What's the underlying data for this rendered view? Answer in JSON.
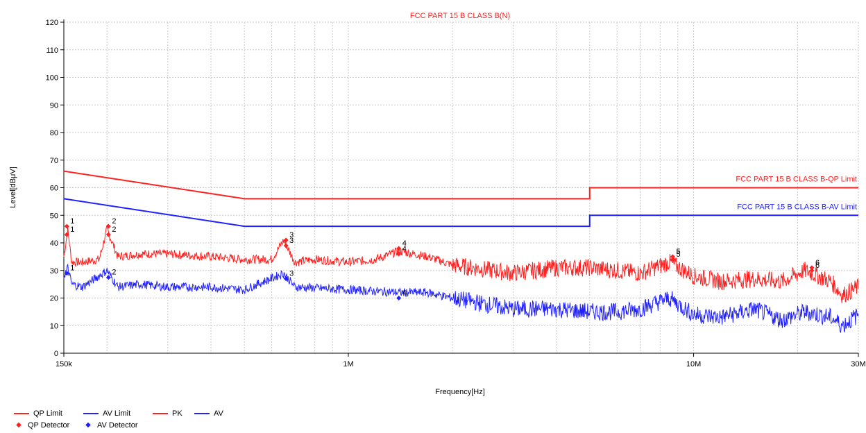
{
  "chart_data": {
    "type": "line",
    "title": "FCC PART 15 B CLASS B(N)",
    "xlabel": "Frequency[Hz]",
    "ylabel": "Level[dBμV]",
    "x_scale": "log",
    "xlim": [
      150000,
      30000000
    ],
    "ylim": [
      0,
      120
    ],
    "x_ticks": [
      150000,
      1000000,
      10000000,
      30000000
    ],
    "x_tick_labels": [
      "150k",
      "1M",
      "10M",
      "30M"
    ],
    "y_ticks": [
      0,
      10,
      20,
      30,
      40,
      50,
      60,
      70,
      80,
      90,
      100,
      110,
      120
    ],
    "grid": true,
    "colors": {
      "qp": "#ff2020",
      "av": "#2020ff",
      "grid": "#c8c8c8"
    },
    "limit_labels": {
      "qp": "FCC PART 15 B CLASS B-QP Limit",
      "av": "FCC PART 15 B CLASS B-AV Limit"
    },
    "series": [
      {
        "name": "QP Limit",
        "kind": "limit",
        "color": "#ff2020",
        "points": [
          [
            150000,
            66
          ],
          [
            500000,
            56
          ],
          [
            5000000,
            56
          ],
          [
            5000000,
            60
          ],
          [
            30000000,
            60
          ]
        ]
      },
      {
        "name": "AV Limit",
        "kind": "limit",
        "color": "#2020ff",
        "points": [
          [
            150000,
            56
          ],
          [
            500000,
            46
          ],
          [
            5000000,
            46
          ],
          [
            5000000,
            50
          ],
          [
            30000000,
            50
          ]
        ]
      },
      {
        "name": "PK",
        "kind": "trace",
        "color": "#ff2020",
        "points": [
          [
            150000,
            35
          ],
          [
            154000,
            45
          ],
          [
            158000,
            33
          ],
          [
            170000,
            33
          ],
          [
            190000,
            34
          ],
          [
            200000,
            45
          ],
          [
            215000,
            35
          ],
          [
            250000,
            36
          ],
          [
            300000,
            36
          ],
          [
            400000,
            35
          ],
          [
            500000,
            34
          ],
          [
            600000,
            34
          ],
          [
            650000,
            41
          ],
          [
            700000,
            33
          ],
          [
            800000,
            34
          ],
          [
            1000000,
            33
          ],
          [
            1200000,
            34
          ],
          [
            1400000,
            37
          ],
          [
            1700000,
            35
          ],
          [
            2000000,
            32
          ],
          [
            3000000,
            29
          ],
          [
            4000000,
            31
          ],
          [
            5000000,
            31
          ],
          [
            6000000,
            30
          ],
          [
            7000000,
            29
          ],
          [
            8500000,
            33
          ],
          [
            10000000,
            28
          ],
          [
            12000000,
            26
          ],
          [
            15000000,
            27
          ],
          [
            18000000,
            26
          ],
          [
            21000000,
            30
          ],
          [
            25000000,
            26
          ],
          [
            27000000,
            21
          ],
          [
            30000000,
            24
          ]
        ]
      },
      {
        "name": "AV",
        "kind": "trace",
        "color": "#2020ff",
        "points": [
          [
            150000,
            28
          ],
          [
            154000,
            31
          ],
          [
            158000,
            25
          ],
          [
            170000,
            24
          ],
          [
            200000,
            30
          ],
          [
            215000,
            24
          ],
          [
            250000,
            25
          ],
          [
            300000,
            24
          ],
          [
            400000,
            24
          ],
          [
            500000,
            23
          ],
          [
            650000,
            29
          ],
          [
            700000,
            24
          ],
          [
            1000000,
            23
          ],
          [
            1400000,
            22
          ],
          [
            1700000,
            22
          ],
          [
            2000000,
            20
          ],
          [
            3000000,
            16
          ],
          [
            4000000,
            16
          ],
          [
            5000000,
            15
          ],
          [
            6000000,
            15
          ],
          [
            7000000,
            16
          ],
          [
            8500000,
            20
          ],
          [
            10000000,
            14
          ],
          [
            12000000,
            13
          ],
          [
            15000000,
            16
          ],
          [
            18000000,
            12
          ],
          [
            21000000,
            15
          ],
          [
            25000000,
            13
          ],
          [
            27000000,
            10
          ],
          [
            30000000,
            14
          ]
        ]
      }
    ],
    "qp_detector": [
      {
        "label": "1",
        "x": 153000,
        "y": 46
      },
      {
        "label": "2",
        "x": 202000,
        "y": 46
      },
      {
        "label": "3",
        "x": 660000,
        "y": 41
      },
      {
        "label": "4",
        "x": 1400000,
        "y": 38
      },
      {
        "label": "5",
        "x": 8700000,
        "y": 35
      },
      {
        "label": "6",
        "x": 22000000,
        "y": 31
      }
    ],
    "pk_markers": [
      {
        "label": "1",
        "x": 153000,
        "y": 43
      },
      {
        "label": "2",
        "x": 202000,
        "y": 43
      },
      {
        "label": "3",
        "x": 660000,
        "y": 39
      },
      {
        "label": "4",
        "x": 1400000,
        "y": 36
      },
      {
        "label": "5",
        "x": 8700000,
        "y": 34
      },
      {
        "label": "6",
        "x": 22000000,
        "y": 30
      }
    ],
    "av_detector": [
      {
        "label": "1",
        "x": 153000,
        "y": 29
      },
      {
        "label": "2",
        "x": 202000,
        "y": 27.5
      },
      {
        "label": "3",
        "x": 660000,
        "y": 27
      },
      {
        "label": "4",
        "x": 1400000,
        "y": 20
      }
    ],
    "legend": [
      {
        "name": "QP Limit",
        "kind": "line",
        "color": "#ff2020"
      },
      {
        "name": "AV Limit",
        "kind": "line",
        "color": "#2020ff"
      },
      {
        "name": "PK",
        "kind": "line",
        "color": "#ff2020"
      },
      {
        "name": "AV",
        "kind": "line",
        "color": "#2020ff"
      },
      {
        "name": "QP Detector",
        "kind": "marker",
        "color": "#ff2020"
      },
      {
        "name": "AV Detector",
        "kind": "marker",
        "color": "#2020ff"
      }
    ]
  }
}
